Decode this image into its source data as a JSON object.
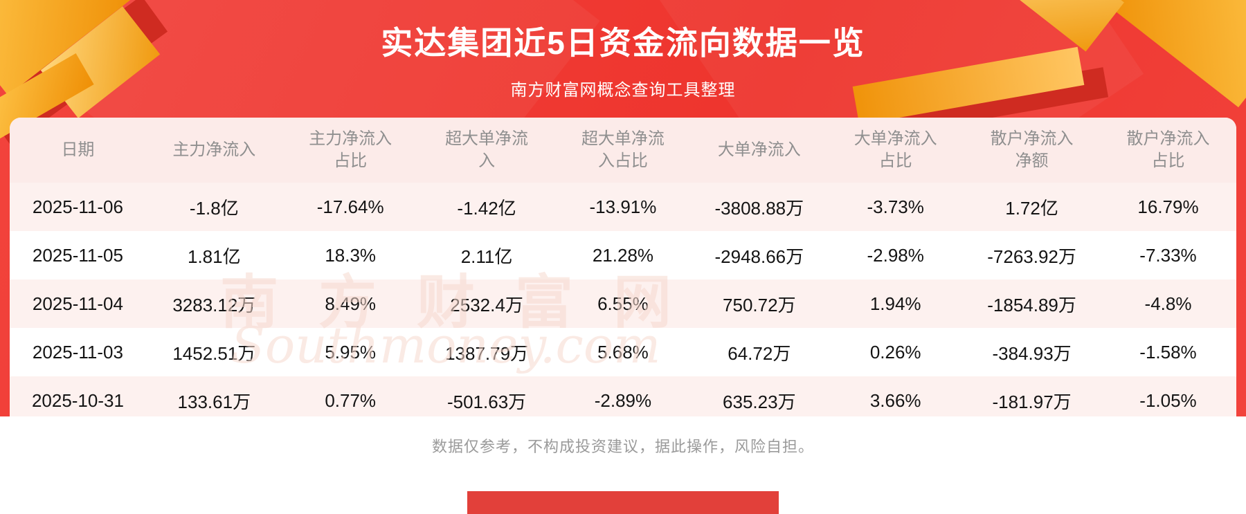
{
  "page": {
    "title": "实达集团近5日资金流向数据一览",
    "subtitle": "南方财富网概念查询工具整理",
    "footer_note": "数据仅参考，不构成投资建议，据此操作，风险自担。",
    "watermark": {
      "cn": "南方财富网",
      "en": "Southmoney.com"
    }
  },
  "table": {
    "headers": [
      "日期",
      "主力净流入",
      "主力净流入\n占比",
      "超大单净流\n入",
      "超大单净流\n入占比",
      "大单净流入",
      "大单净流入\n占比",
      "散户净流入\n净额",
      "散户净流入\n占比"
    ],
    "rows": [
      [
        "2025-11-06",
        "-1.8亿",
        "-17.64%",
        "-1.42亿",
        "-13.91%",
        "-3808.88万",
        "-3.73%",
        "1.72亿",
        "16.79%"
      ],
      [
        "2025-11-05",
        "1.81亿",
        "18.3%",
        "2.11亿",
        "21.28%",
        "-2948.66万",
        "-2.98%",
        "-7263.92万",
        "-7.33%"
      ],
      [
        "2025-11-04",
        "3283.12万",
        "8.49%",
        "2532.4万",
        "6.55%",
        "750.72万",
        "1.94%",
        "-1854.89万",
        "-4.8%"
      ],
      [
        "2025-11-03",
        "1452.51万",
        "5.95%",
        "1387.79万",
        "5.68%",
        "64.72万",
        "0.26%",
        "-384.93万",
        "-1.58%"
      ],
      [
        "2025-10-31",
        "133.61万",
        "0.77%",
        "-501.63万",
        "-2.89%",
        "635.23万",
        "3.66%",
        "-181.97万",
        "-1.05%"
      ]
    ]
  },
  "chart_data": {
    "type": "table",
    "title": "实达集团近5日资金流向数据一览",
    "columns": [
      "日期",
      "主力净流入",
      "主力净流入占比",
      "超大单净流入",
      "超大单净流入占比",
      "大单净流入",
      "大单净流入占比",
      "散户净流入净额",
      "散户净流入占比"
    ],
    "rows": [
      [
        "2025-11-06",
        "-1.8亿",
        "-17.64%",
        "-1.42亿",
        "-13.91%",
        "-3808.88万",
        "-3.73%",
        "1.72亿",
        "16.79%"
      ],
      [
        "2025-11-05",
        "1.81亿",
        "18.3%",
        "2.11亿",
        "21.28%",
        "-2948.66万",
        "-2.98%",
        "-7263.92万",
        "-7.33%"
      ],
      [
        "2025-11-04",
        "3283.12万",
        "8.49%",
        "2532.4万",
        "6.55%",
        "750.72万",
        "1.94%",
        "-1854.89万",
        "-4.8%"
      ],
      [
        "2025-11-03",
        "1452.51万",
        "5.95%",
        "1387.79万",
        "5.68%",
        "64.72万",
        "0.26%",
        "-384.93万",
        "-1.58%"
      ],
      [
        "2025-10-31",
        "133.61万",
        "0.77%",
        "-501.63万",
        "-2.89%",
        "635.23万",
        "3.66%",
        "-181.97万",
        "-1.05%"
      ]
    ]
  },
  "colors": {
    "background_red": "#ee342d",
    "table_header_bg": "#fcebe9",
    "row_alt_bg": "#fdf1ef",
    "row_white_bg": "#ffffff",
    "header_text": "#8f8f8f",
    "body_text": "#141414",
    "footer_text": "#9a9a9a",
    "title_text": "#ffffff",
    "ribbon_gold": "#f09a10",
    "ribbon_dark_red": "#cf2b21",
    "bottom_banner": "#e2403a"
  }
}
